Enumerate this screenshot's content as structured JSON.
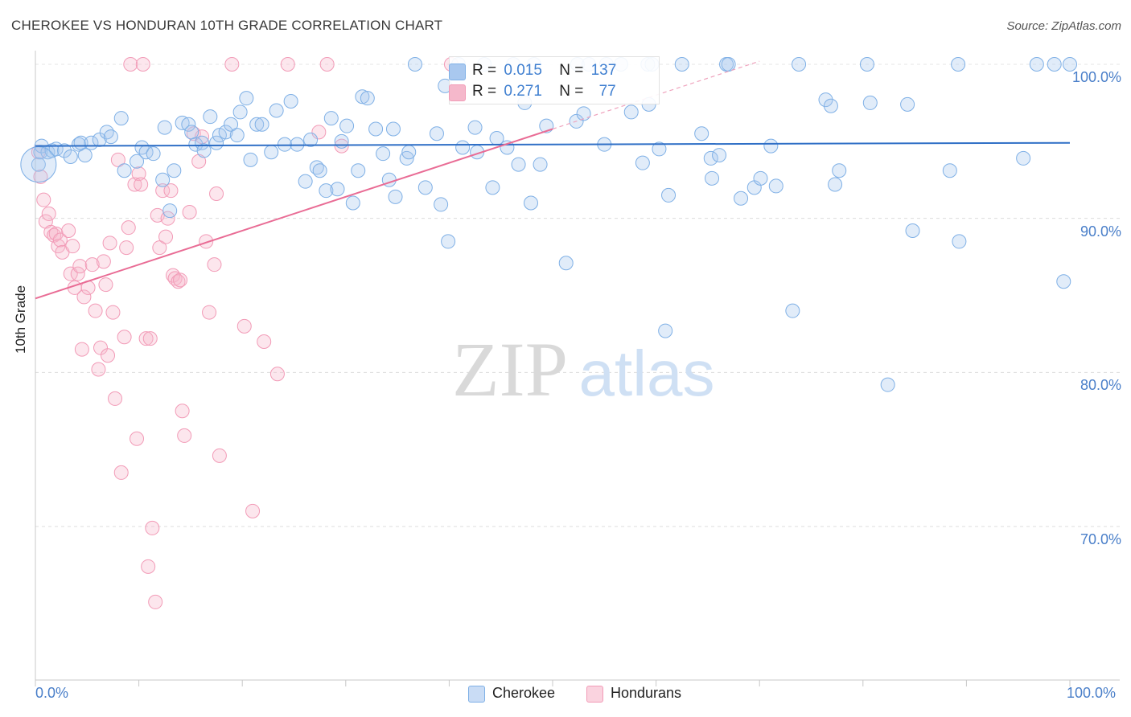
{
  "header": {
    "title": "CHEROKEE VS HONDURAN 10TH GRADE CORRELATION CHART",
    "source": "Source: ZipAtlas.com"
  },
  "watermark": {
    "zip": "ZIP",
    "atlas": "atlas"
  },
  "legend": {
    "series": [
      {
        "r_label": "R =",
        "r_value": "0.015",
        "n_label": "N =",
        "n_value": "137",
        "color": "#a9c8ef"
      },
      {
        "r_label": "R =",
        "r_value": "0.271",
        "n_label": "N =",
        "n_value": "77",
        "color": "#f5b8cb"
      }
    ]
  },
  "bottom_legend": [
    {
      "label": "Cherokee",
      "color": "#a9c8ef"
    },
    {
      "label": "Hondurans",
      "color": "#f5b8cb"
    }
  ],
  "chart_data": {
    "type": "scatter",
    "title": "CHEROKEE VS HONDURAN 10TH GRADE CORRELATION CHART",
    "xlabel": "",
    "ylabel": "10th Grade",
    "xlim": [
      0,
      100
    ],
    "ylim": [
      60.5,
      101.5
    ],
    "x_tick_labels": [
      "0.0%",
      "100.0%"
    ],
    "y_ticks": [
      70,
      80,
      90,
      100
    ],
    "y_tick_labels": [
      "70.0%",
      "80.0%",
      "90.0%",
      "100.0%"
    ],
    "grid": true,
    "legend_position": "top-center",
    "series": [
      {
        "name": "Cherokee",
        "color": "#7fb0e6",
        "trend": {
          "x": [
            0,
            100
          ],
          "y": [
            94.7,
            94.9
          ]
        },
        "points": [
          [
            0.3,
            93.5
          ],
          [
            0.5,
            94.3
          ],
          [
            0.6,
            94.7
          ],
          [
            1.2,
            94.3
          ],
          [
            1.6,
            94.4
          ],
          [
            2.0,
            94.5
          ],
          [
            2.8,
            94.4
          ],
          [
            3.4,
            94.0
          ],
          [
            4.2,
            94.8
          ],
          [
            4.4,
            94.9
          ],
          [
            4.8,
            94.1
          ],
          [
            5.4,
            94.9
          ],
          [
            6.2,
            95.1
          ],
          [
            6.9,
            95.6
          ],
          [
            7.3,
            95.3
          ],
          [
            8.3,
            96.5
          ],
          [
            8.6,
            93.1
          ],
          [
            9.8,
            93.7
          ],
          [
            10.3,
            94.6
          ],
          [
            10.7,
            94.3
          ],
          [
            11.4,
            94.2
          ],
          [
            12.3,
            92.5
          ],
          [
            12.5,
            95.9
          ],
          [
            13.0,
            90.5
          ],
          [
            13.4,
            93.1
          ],
          [
            14.2,
            96.2
          ],
          [
            14.8,
            96.1
          ],
          [
            15.1,
            95.6
          ],
          [
            15.5,
            94.8
          ],
          [
            16.1,
            94.9
          ],
          [
            16.3,
            94.4
          ],
          [
            16.9,
            96.6
          ],
          [
            17.5,
            94.9
          ],
          [
            17.8,
            95.4
          ],
          [
            18.4,
            95.6
          ],
          [
            18.9,
            96.1
          ],
          [
            19.5,
            95.4
          ],
          [
            19.8,
            96.9
          ],
          [
            20.4,
            97.8
          ],
          [
            20.8,
            93.8
          ],
          [
            21.4,
            96.1
          ],
          [
            21.9,
            96.1
          ],
          [
            22.8,
            94.3
          ],
          [
            23.3,
            97.0
          ],
          [
            24.1,
            94.8
          ],
          [
            24.7,
            97.6
          ],
          [
            25.3,
            94.8
          ],
          [
            26.1,
            92.4
          ],
          [
            26.6,
            95.1
          ],
          [
            27.2,
            93.3
          ],
          [
            27.5,
            93.1
          ],
          [
            28.1,
            91.8
          ],
          [
            28.6,
            96.5
          ],
          [
            29.2,
            91.9
          ],
          [
            29.6,
            95.0
          ],
          [
            30.1,
            96.0
          ],
          [
            30.7,
            91.0
          ],
          [
            31.2,
            93.1
          ],
          [
            31.6,
            97.9
          ],
          [
            32.1,
            97.8
          ],
          [
            32.9,
            95.8
          ],
          [
            33.6,
            94.2
          ],
          [
            34.2,
            92.5
          ],
          [
            34.6,
            95.8
          ],
          [
            34.8,
            91.4
          ],
          [
            35.9,
            93.9
          ],
          [
            36.1,
            94.3
          ],
          [
            36.7,
            100.0
          ],
          [
            37.7,
            92.0
          ],
          [
            38.8,
            95.5
          ],
          [
            39.2,
            90.9
          ],
          [
            39.6,
            98.6
          ],
          [
            39.9,
            88.5
          ],
          [
            40.9,
            100.0
          ],
          [
            41.3,
            94.6
          ],
          [
            42.5,
            95.9
          ],
          [
            42.7,
            94.3
          ],
          [
            43.4,
            100.0
          ],
          [
            44.2,
            92.0
          ],
          [
            44.6,
            95.2
          ],
          [
            45.6,
            94.6
          ],
          [
            46.2,
            100.0
          ],
          [
            46.7,
            93.5
          ],
          [
            47.3,
            97.5
          ],
          [
            47.9,
            91.0
          ],
          [
            48.2,
            100.0
          ],
          [
            48.8,
            93.5
          ],
          [
            49.4,
            96.0
          ],
          [
            51.3,
            87.1
          ],
          [
            52.3,
            96.3
          ],
          [
            52.4,
            100.0
          ],
          [
            53.0,
            96.8
          ],
          [
            53.5,
            100.0
          ],
          [
            55.0,
            94.8
          ],
          [
            55.2,
            100.0
          ],
          [
            56.6,
            100.0
          ],
          [
            57.6,
            96.9
          ],
          [
            58.7,
            93.6
          ],
          [
            59.2,
            100.0
          ],
          [
            59.3,
            97.4
          ],
          [
            59.6,
            100.0
          ],
          [
            60.3,
            94.5
          ],
          [
            60.9,
            82.7
          ],
          [
            61.2,
            91.5
          ],
          [
            62.5,
            100.0
          ],
          [
            64.4,
            95.5
          ],
          [
            65.3,
            93.9
          ],
          [
            65.4,
            92.6
          ],
          [
            66.1,
            94.1
          ],
          [
            66.8,
            100.0
          ],
          [
            67.0,
            100.0
          ],
          [
            68.2,
            91.3
          ],
          [
            69.5,
            92.0
          ],
          [
            70.1,
            92.6
          ],
          [
            71.1,
            94.7
          ],
          [
            71.6,
            92.1
          ],
          [
            73.2,
            84.0
          ],
          [
            73.8,
            100.0
          ],
          [
            76.4,
            97.7
          ],
          [
            76.9,
            97.3
          ],
          [
            77.3,
            92.2
          ],
          [
            77.7,
            93.1
          ],
          [
            80.4,
            100.0
          ],
          [
            80.7,
            97.5
          ],
          [
            82.4,
            79.2
          ],
          [
            84.3,
            97.4
          ],
          [
            84.8,
            89.2
          ],
          [
            88.4,
            93.1
          ],
          [
            89.2,
            100.0
          ],
          [
            89.3,
            88.5
          ],
          [
            95.5,
            93.9
          ],
          [
            96.8,
            100.0
          ],
          [
            98.5,
            100.0
          ],
          [
            99.4,
            85.9
          ],
          [
            100.0,
            100.0
          ]
        ],
        "large_point": [
          0.3,
          93.5
        ]
      },
      {
        "name": "Hondurans",
        "color": "#f29bb7",
        "trend": {
          "x": [
            0,
            50
          ],
          "y": [
            84.8,
            95.8
          ]
        },
        "trend_extension": {
          "x": [
            50,
            70
          ],
          "y": [
            95.8,
            100.2
          ]
        },
        "points": [
          [
            0.3,
            94.3
          ],
          [
            0.5,
            92.7
          ],
          [
            0.8,
            91.2
          ],
          [
            1.0,
            89.8
          ],
          [
            1.3,
            90.3
          ],
          [
            1.5,
            89.1
          ],
          [
            1.8,
            88.9
          ],
          [
            2.0,
            89.0
          ],
          [
            2.2,
            88.2
          ],
          [
            2.4,
            88.6
          ],
          [
            2.6,
            87.8
          ],
          [
            3.2,
            89.2
          ],
          [
            3.4,
            86.4
          ],
          [
            3.6,
            88.2
          ],
          [
            3.8,
            85.5
          ],
          [
            4.1,
            86.4
          ],
          [
            4.3,
            86.9
          ],
          [
            4.5,
            81.5
          ],
          [
            4.7,
            84.9
          ],
          [
            5.1,
            85.5
          ],
          [
            5.5,
            87.0
          ],
          [
            5.8,
            84.0
          ],
          [
            6.1,
            80.2
          ],
          [
            6.3,
            81.6
          ],
          [
            6.6,
            87.2
          ],
          [
            6.8,
            85.7
          ],
          [
            7.0,
            81.1
          ],
          [
            7.2,
            88.4
          ],
          [
            7.5,
            83.9
          ],
          [
            7.7,
            78.3
          ],
          [
            8.0,
            93.8
          ],
          [
            8.3,
            73.5
          ],
          [
            8.6,
            82.3
          ],
          [
            8.8,
            88.1
          ],
          [
            9.0,
            89.4
          ],
          [
            9.2,
            100.0
          ],
          [
            9.6,
            92.2
          ],
          [
            9.8,
            75.7
          ],
          [
            10.0,
            92.9
          ],
          [
            10.2,
            92.2
          ],
          [
            10.4,
            100.0
          ],
          [
            10.7,
            82.2
          ],
          [
            10.9,
            67.4
          ],
          [
            11.1,
            82.2
          ],
          [
            11.3,
            69.9
          ],
          [
            11.6,
            65.1
          ],
          [
            11.8,
            90.2
          ],
          [
            12.0,
            88.1
          ],
          [
            12.3,
            91.8
          ],
          [
            12.6,
            88.8
          ],
          [
            12.8,
            90.0
          ],
          [
            13.1,
            91.8
          ],
          [
            13.3,
            86.3
          ],
          [
            13.5,
            86.1
          ],
          [
            13.8,
            85.9
          ],
          [
            14.0,
            86.0
          ],
          [
            14.2,
            77.5
          ],
          [
            14.4,
            75.9
          ],
          [
            14.9,
            90.4
          ],
          [
            15.3,
            95.5
          ],
          [
            15.8,
            93.7
          ],
          [
            16.1,
            95.3
          ],
          [
            16.5,
            88.5
          ],
          [
            16.8,
            83.9
          ],
          [
            17.3,
            87.0
          ],
          [
            17.5,
            91.6
          ],
          [
            17.8,
            74.6
          ],
          [
            19.0,
            100.0
          ],
          [
            20.2,
            83.0
          ],
          [
            21.0,
            71.0
          ],
          [
            22.1,
            82.0
          ],
          [
            23.4,
            79.9
          ],
          [
            24.4,
            100.0
          ],
          [
            27.4,
            95.6
          ],
          [
            28.2,
            100.0
          ],
          [
            29.6,
            94.7
          ],
          [
            40.2,
            100.0
          ]
        ]
      }
    ]
  }
}
